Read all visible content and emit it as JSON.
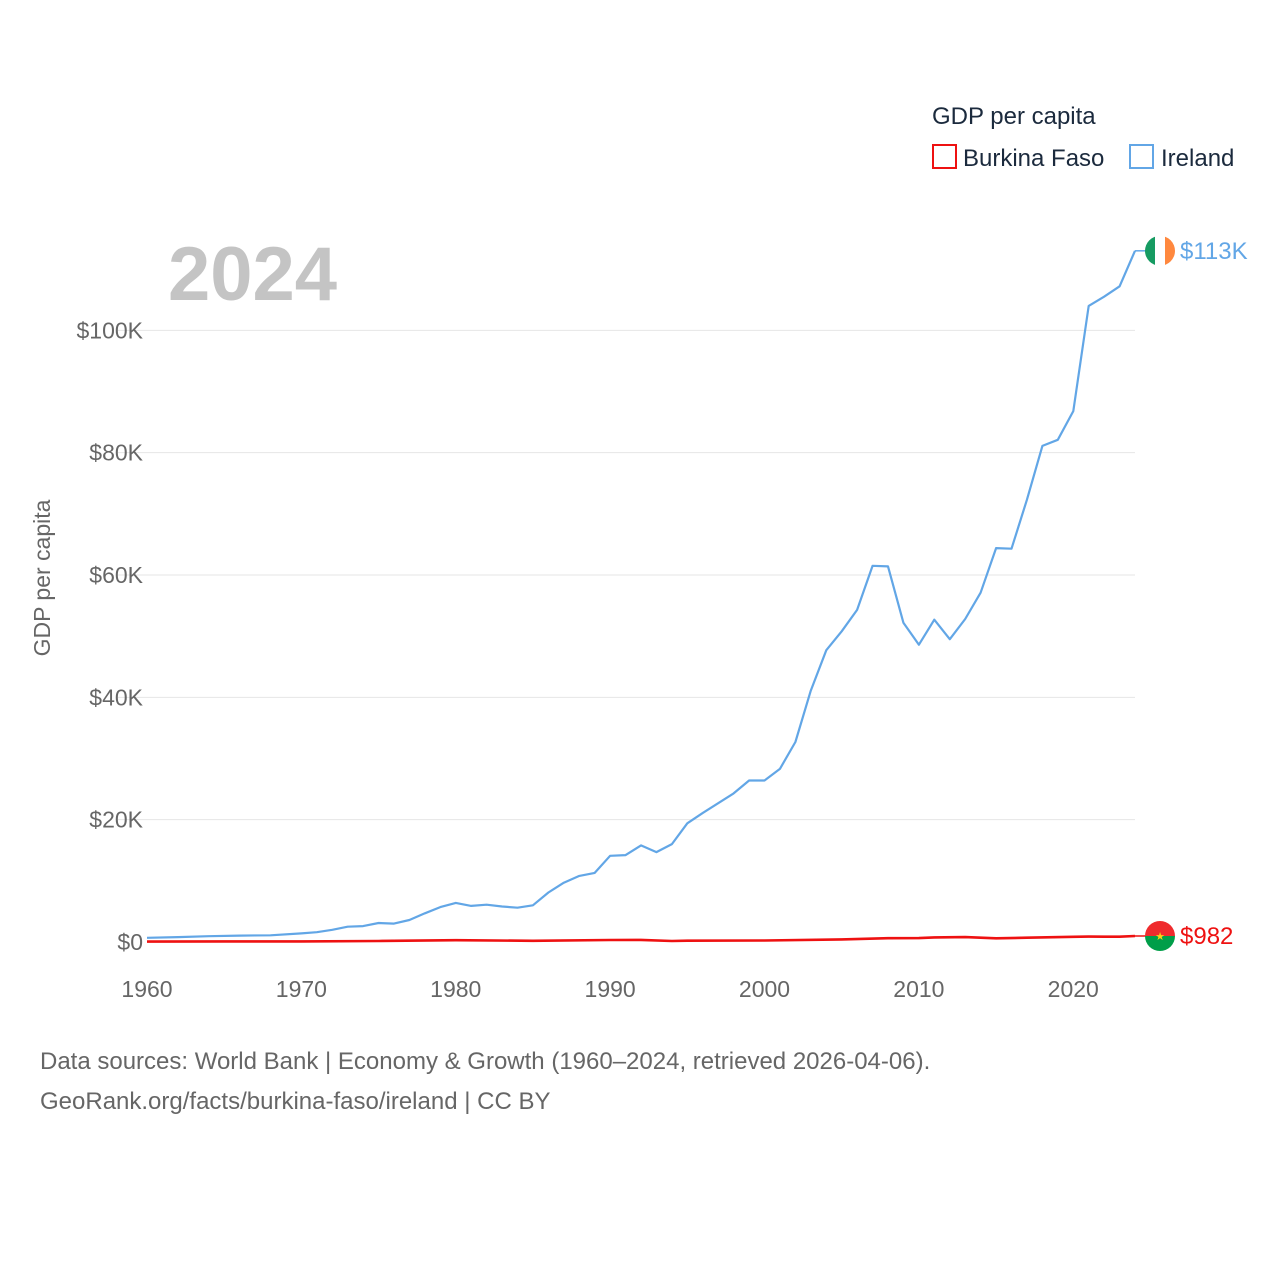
{
  "chart_data": {
    "type": "line",
    "year_label": "2024",
    "legend_title": "GDP per capita",
    "ylabel": "GDP per capita",
    "xlabel": "",
    "xlim": [
      1960,
      2024
    ],
    "ylim": [
      0,
      120000
    ],
    "x_ticks": [
      1960,
      1970,
      1980,
      1990,
      2000,
      2010,
      2020
    ],
    "x_tick_labels": [
      "1960",
      "1970",
      "1980",
      "1990",
      "2000",
      "2010",
      "2020"
    ],
    "y_ticks": [
      0,
      20000,
      40000,
      60000,
      80000,
      100000
    ],
    "y_tick_labels": [
      "$0",
      "$20K",
      "$40K",
      "$60K",
      "$80K",
      "$100K"
    ],
    "grid": true,
    "legend_position": "top-right",
    "series": [
      {
        "name": "Burkina Faso",
        "color": "#ee1111",
        "end_label": "$982",
        "flag": "burkina-faso-flag",
        "x": [
          1960,
          1965,
          1970,
          1975,
          1980,
          1985,
          1990,
          1992,
          1994,
          1995,
          2000,
          2005,
          2008,
          2010,
          2011,
          2013,
          2015,
          2017,
          2020,
          2021,
          2022,
          2023,
          2024
        ],
        "values": [
          70,
          90,
          90,
          160,
          300,
          200,
          330,
          340,
          170,
          220,
          240,
          430,
          620,
          640,
          760,
          800,
          600,
          700,
          850,
          890,
          860,
          870,
          982
        ]
      },
      {
        "name": "Ireland",
        "color": "#62a6e6",
        "end_label": "$113K",
        "flag": "ireland-flag",
        "x": [
          1960,
          1962,
          1964,
          1966,
          1968,
          1970,
          1971,
          1972,
          1973,
          1974,
          1975,
          1976,
          1977,
          1978,
          1979,
          1980,
          1981,
          1982,
          1983,
          1984,
          1985,
          1986,
          1987,
          1988,
          1989,
          1990,
          1991,
          1992,
          1993,
          1994,
          1995,
          1996,
          1997,
          1998,
          1999,
          2000,
          2001,
          2002,
          2003,
          2004,
          2005,
          2006,
          2007,
          2008,
          2009,
          2010,
          2011,
          2012,
          2013,
          2014,
          2015,
          2016,
          2017,
          2018,
          2019,
          2020,
          2021,
          2022,
          2023,
          2024
        ],
        "values": [
          680,
          800,
          950,
          1050,
          1100,
          1400,
          1600,
          2000,
          2500,
          2600,
          3100,
          3000,
          3600,
          4700,
          5700,
          6400,
          5900,
          6100,
          5800,
          5600,
          6000,
          8100,
          9700,
          10800,
          11300,
          14100,
          14200,
          15800,
          14700,
          16000,
          19400,
          21100,
          22700,
          24300,
          26400,
          26400,
          28300,
          32700,
          41100,
          47700,
          50800,
          54300,
          61500,
          61400,
          52200,
          48600,
          52700,
          49500,
          52800,
          57100,
          64400,
          64300,
          72300,
          81100,
          82100,
          86800,
          104000,
          105500,
          107200,
          113000
        ]
      }
    ]
  },
  "source": {
    "line1": "Data sources: World Bank | Economy & Growth (1960–2024, retrieved 2026-04-06).",
    "line2": "GeoRank.org/facts/burkina-faso/ireland | CC BY"
  }
}
